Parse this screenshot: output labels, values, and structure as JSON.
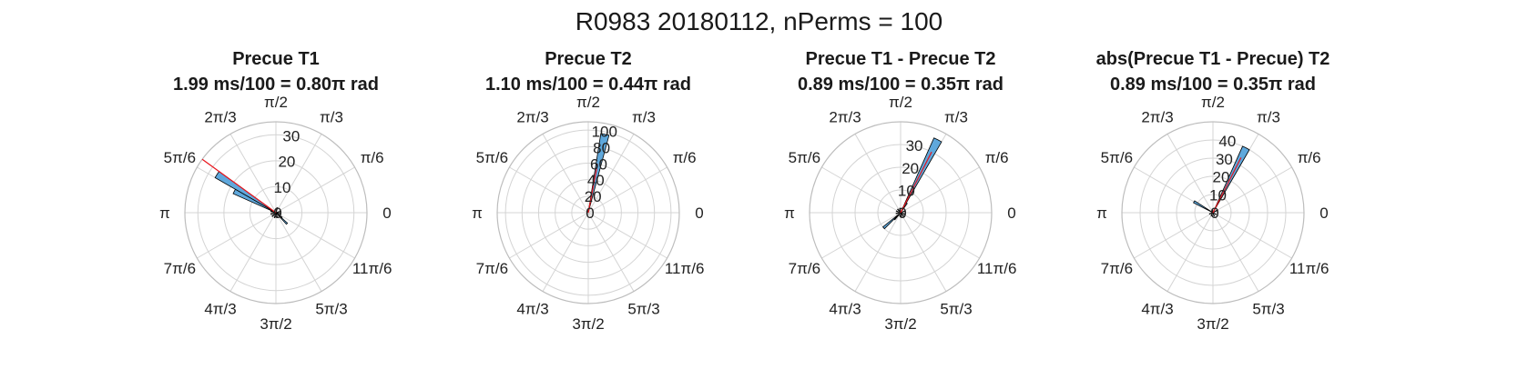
{
  "figure": {
    "suptitle": "R0983 20180112, nPerms = 100"
  },
  "theme": {
    "bar_fill": "#5fa8dc",
    "bar_edge": "#000000",
    "mean_line": "#e8141b",
    "grid": "#d4d4d4",
    "outer_ring": "#bdbdbd"
  },
  "chart_data": [
    {
      "type": "polar-histogram",
      "title": "Precue T1",
      "subtitle": "1.99 ms/100 = 0.80π rad",
      "angle_tick_labels": [
        "0",
        "π/6",
        "π/3",
        "π/2",
        "2π/3",
        "5π/6",
        "π",
        "7π/6",
        "4π/3",
        "3π/2",
        "5π/3",
        "11π/6"
      ],
      "r_ticks": [
        0,
        10,
        20,
        30
      ],
      "r_tick_labels": [
        "0",
        "10",
        "20",
        "30"
      ],
      "rlim": [
        0,
        35
      ],
      "bin_width_deg": 6,
      "bins": [
        {
          "center_deg": 147,
          "count": 27
        },
        {
          "center_deg": 153,
          "count": 18
        },
        {
          "center_deg": 315,
          "count": 6
        },
        {
          "center_deg": 321,
          "count": 3
        },
        {
          "center_deg": 165,
          "count": 2
        },
        {
          "center_deg": 195,
          "count": 2
        },
        {
          "center_deg": 225,
          "count": 2
        },
        {
          "center_deg": 255,
          "count": 2
        },
        {
          "center_deg": 285,
          "count": 2
        },
        {
          "center_deg": 345,
          "count": 2
        },
        {
          "center_deg": 15,
          "count": 2
        },
        {
          "center_deg": 75,
          "count": 2
        }
      ],
      "mean_angle_deg": 144,
      "mean_length": 35
    },
    {
      "type": "polar-histogram",
      "title": "Precue T2",
      "subtitle": "1.10 ms/100 = 0.44π rad",
      "angle_tick_labels": [
        "0",
        "π/6",
        "π/3",
        "π/2",
        "2π/3",
        "5π/6",
        "π",
        "7π/6",
        "4π/3",
        "3π/2",
        "5π/3",
        "11π/6"
      ],
      "r_ticks": [
        0,
        20,
        40,
        60,
        80,
        100
      ],
      "r_tick_labels": [
        "0",
        "20",
        "40",
        "60",
        "80",
        "100"
      ],
      "rlim": [
        0,
        110
      ],
      "bin_width_deg": 6,
      "bins": [
        {
          "center_deg": 78,
          "count": 97
        },
        {
          "center_deg": 84,
          "count": 3
        }
      ],
      "mean_angle_deg": 79.2,
      "mean_length": 60
    },
    {
      "type": "polar-histogram",
      "title": "Precue T1 - Precue T2",
      "subtitle": "0.89 ms/100 = 0.35π rad",
      "angle_tick_labels": [
        "0",
        "π/6",
        "π/3",
        "π/2",
        "2π/3",
        "5π/6",
        "π",
        "7π/6",
        "4π/3",
        "3π/2",
        "5π/3",
        "11π/6"
      ],
      "r_ticks": [
        0,
        10,
        20,
        30
      ],
      "r_tick_labels": [
        "0",
        "10",
        "20",
        "30"
      ],
      "rlim": [
        0,
        40
      ],
      "bin_width_deg": 6,
      "bins": [
        {
          "center_deg": 63,
          "count": 36
        },
        {
          "center_deg": 57,
          "count": 5
        },
        {
          "center_deg": 222,
          "count": 10
        },
        {
          "center_deg": 228,
          "count": 4
        },
        {
          "center_deg": 100,
          "count": 2
        },
        {
          "center_deg": 130,
          "count": 2
        },
        {
          "center_deg": 160,
          "count": 2
        },
        {
          "center_deg": 190,
          "count": 2
        },
        {
          "center_deg": 280,
          "count": 2
        },
        {
          "center_deg": 310,
          "count": 2
        },
        {
          "center_deg": 340,
          "count": 2
        },
        {
          "center_deg": 20,
          "count": 2
        }
      ],
      "mean_angle_deg": 63,
      "mean_length": 30
    },
    {
      "type": "polar-histogram",
      "title": "abs(Precue T1 - Precue) T2",
      "subtitle": "0.89 ms/100 = 0.35π rad",
      "angle_tick_labels": [
        "0",
        "π/6",
        "π/3",
        "π/2",
        "2π/3",
        "5π/6",
        "π",
        "7π/6",
        "4π/3",
        "3π/2",
        "5π/3",
        "11π/6"
      ],
      "r_ticks": [
        0,
        10,
        20,
        30,
        40
      ],
      "r_tick_labels": [
        "0",
        "10",
        "20",
        "30",
        "40"
      ],
      "rlim": [
        0,
        50
      ],
      "bin_width_deg": 6,
      "bins": [
        {
          "center_deg": 63,
          "count": 40
        },
        {
          "center_deg": 150,
          "count": 12
        },
        {
          "center_deg": 30,
          "count": 3
        },
        {
          "center_deg": 100,
          "count": 2
        },
        {
          "center_deg": 200,
          "count": 2
        },
        {
          "center_deg": 240,
          "count": 2
        },
        {
          "center_deg": 290,
          "count": 2
        },
        {
          "center_deg": 330,
          "count": 2
        }
      ],
      "mean_angle_deg": 63,
      "mean_length": 34
    }
  ]
}
